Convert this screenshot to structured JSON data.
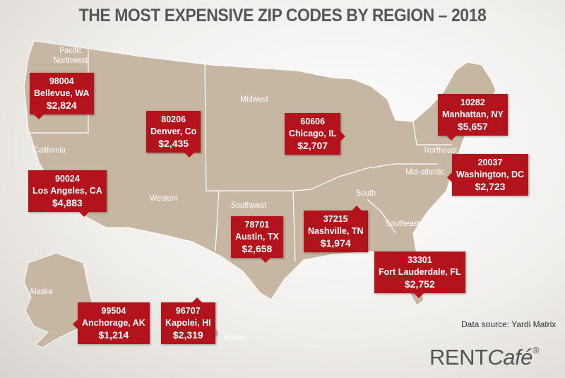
{
  "title": "THE MOST EXPENSIVE ZIP CODES BY REGION – 2018",
  "regions": [
    "Pacific Northwest",
    "California",
    "Western",
    "Midwest",
    "Southwest",
    "South",
    "Mid-atlantic",
    "Northeast",
    "Southeast",
    "Alaska",
    "Hawaii"
  ],
  "callouts": [
    {
      "zip": "98004",
      "city": "Bellevue, WA",
      "rent": "$2,824"
    },
    {
      "zip": "80206",
      "city": "Denver, Co",
      "rent": "$2,435"
    },
    {
      "zip": "60606",
      "city": "Chicago, IL",
      "rent": "$2,707"
    },
    {
      "zip": "10282",
      "city": "Manhattan, NY",
      "rent": "$5,657"
    },
    {
      "zip": "20037",
      "city": "Washington, DC",
      "rent": "$2,723"
    },
    {
      "zip": "90024",
      "city": "Los Angeles, CA",
      "rent": "$4,883"
    },
    {
      "zip": "78701",
      "city": "Austin, TX",
      "rent": "$2,658"
    },
    {
      "zip": "37215",
      "city": "Nashville, TN",
      "rent": "$1,974"
    },
    {
      "zip": "33301",
      "city": "Fort Lauderdale, FL",
      "rent": "$2,752"
    },
    {
      "zip": "99504",
      "city": "Anchorage, AK",
      "rent": "$1,214"
    },
    {
      "zip": "96707",
      "city": "Kapolei, HI",
      "rent": "$2,319"
    }
  ],
  "source": "Data source:  Yardi Matrix",
  "logo": {
    "rent": "RENT",
    "cafe": "Café",
    "mark": "®"
  }
}
